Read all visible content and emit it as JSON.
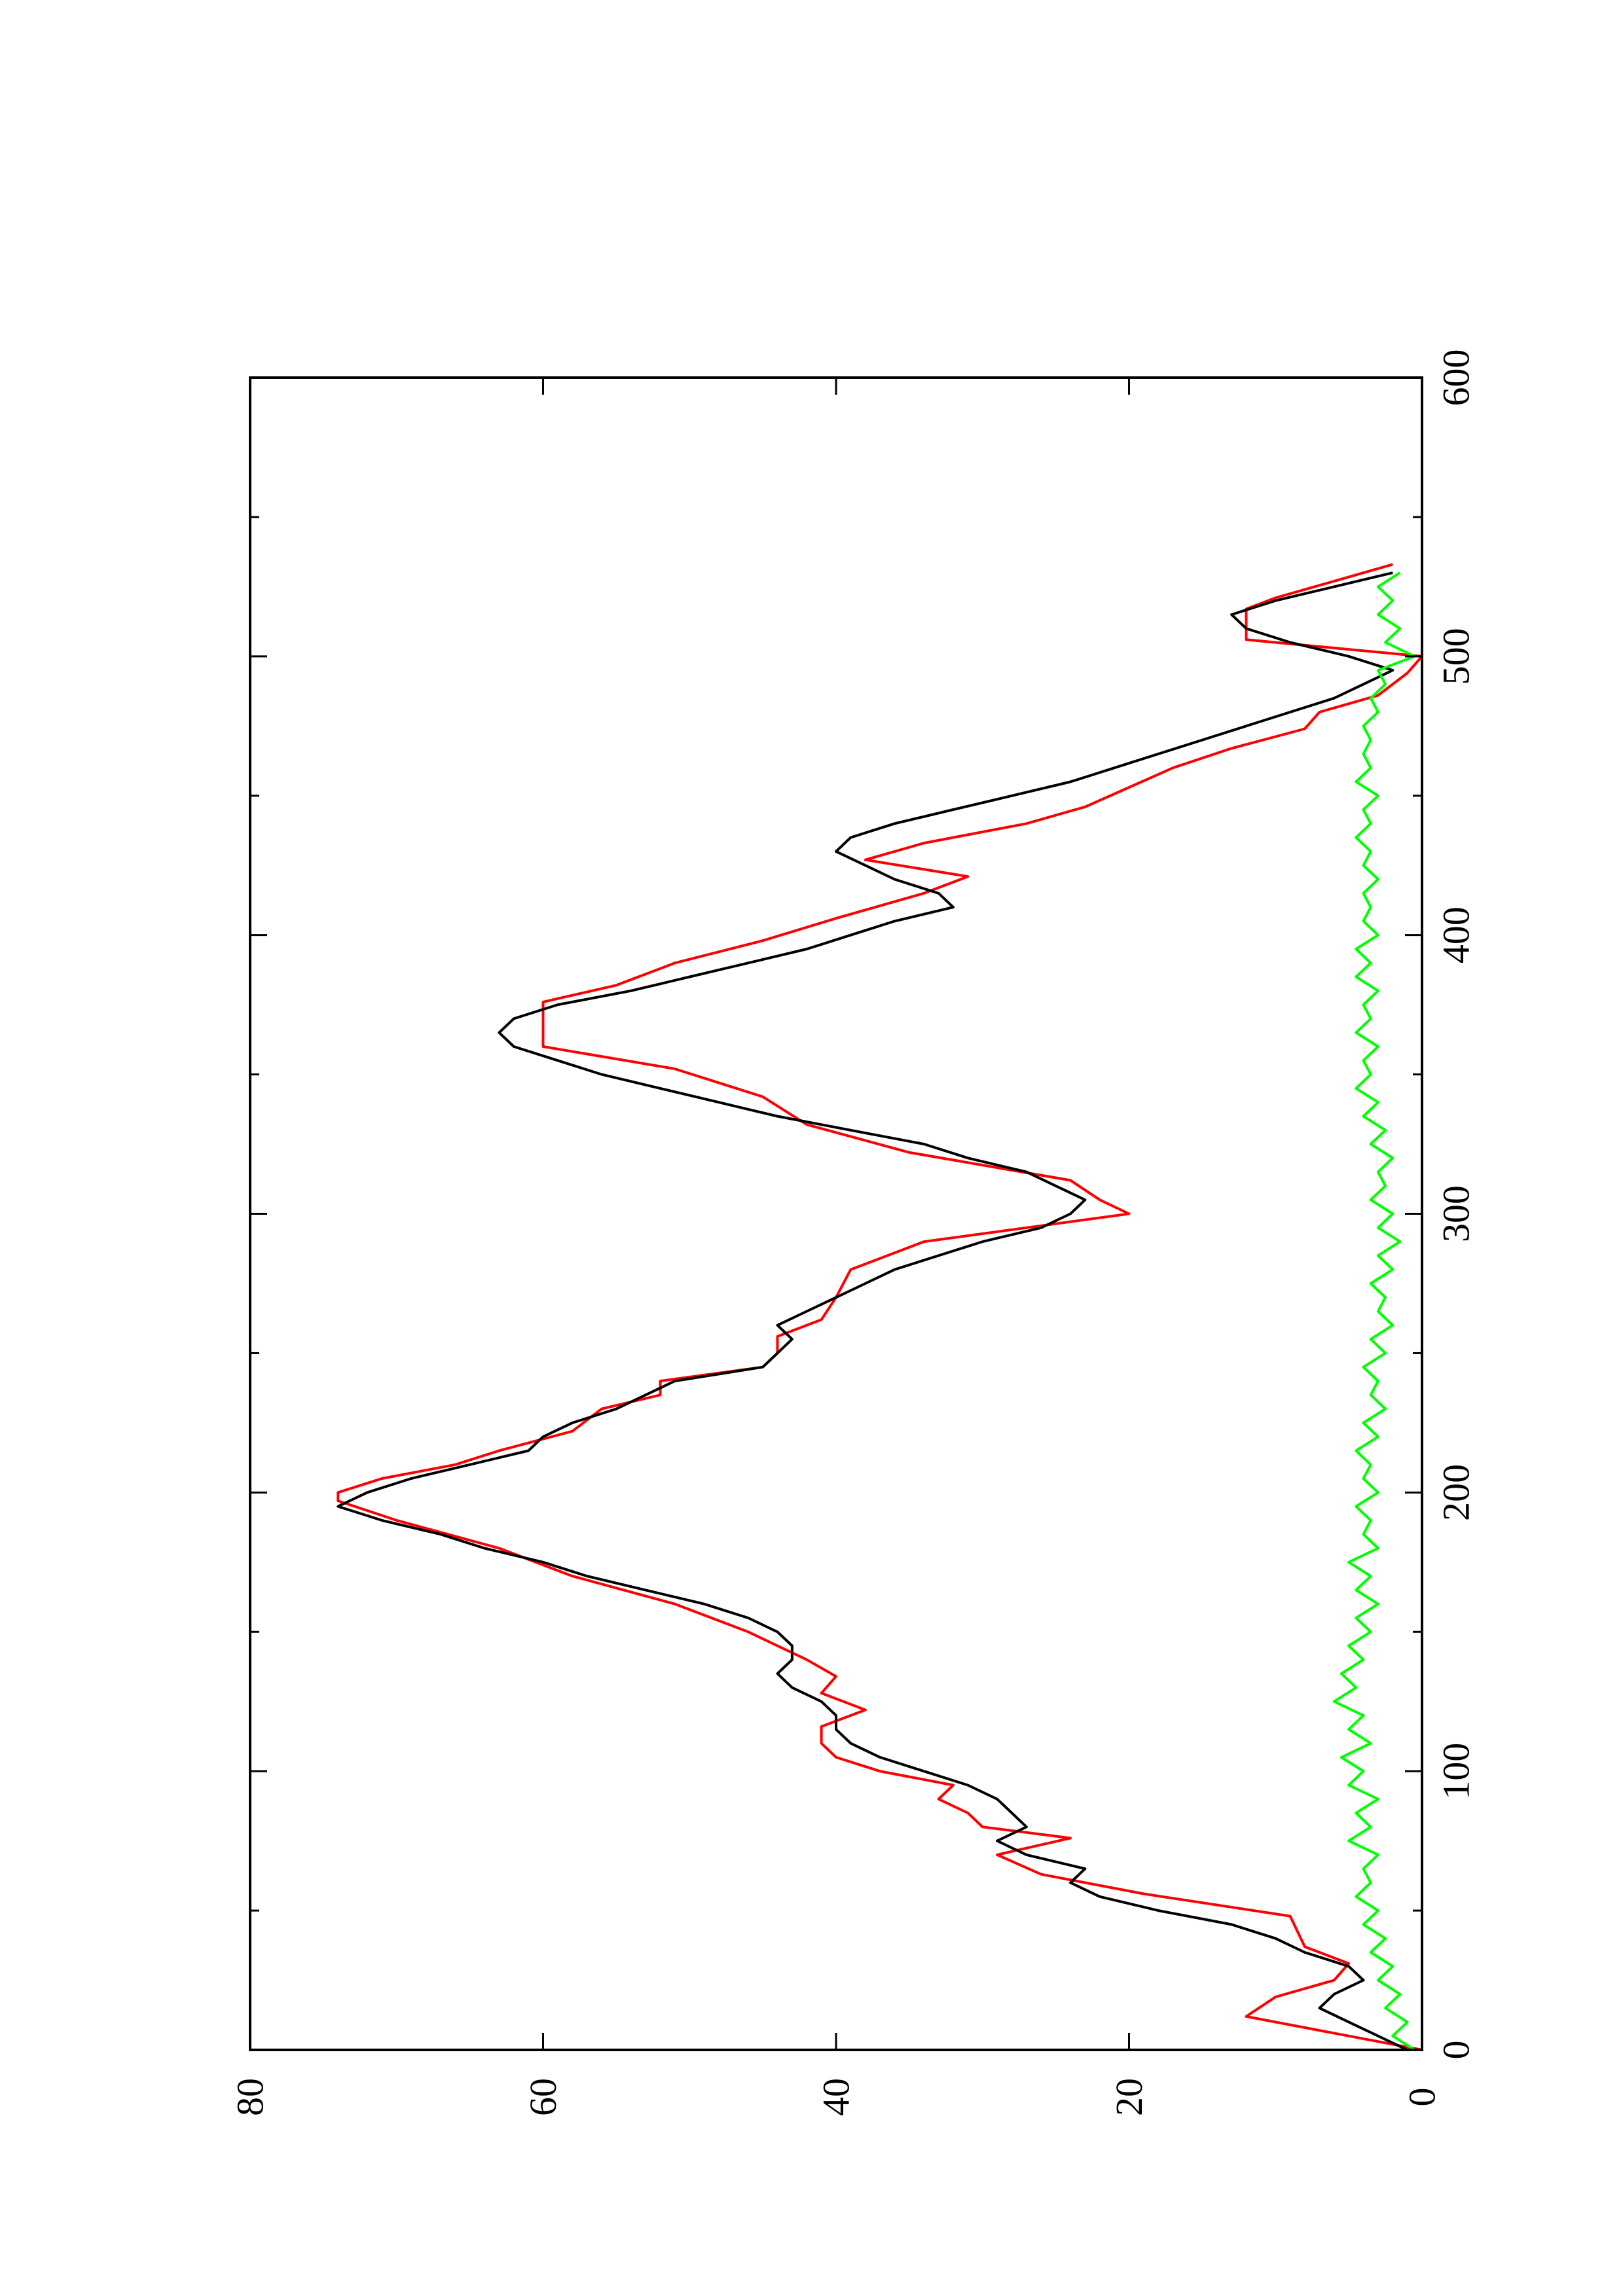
{
  "chart_data": {
    "type": "line",
    "orientation": "rotated-90-ccw",
    "title": "",
    "xlabel": "",
    "ylabel": "",
    "xlim": [
      0,
      600
    ],
    "ylim": [
      0,
      80
    ],
    "x_major_ticks": [
      0,
      100,
      200,
      300,
      400,
      500,
      600
    ],
    "x_minor_ticks": [
      50,
      150,
      250,
      350,
      450,
      550
    ],
    "y_major_ticks": [
      0,
      20,
      40,
      60,
      80
    ],
    "x_tick_labels": [
      "0",
      "100",
      "200",
      "300",
      "400",
      "500",
      "600"
    ],
    "y_tick_labels": [
      "0",
      "20",
      "40",
      "60",
      "80"
    ],
    "grid": false,
    "legend": "none",
    "series": [
      {
        "color": "#ff0000",
        "x": [
          0,
          5,
          12,
          19,
          25,
          31,
          37,
          48,
          56,
          63,
          70,
          76,
          80,
          85,
          90,
          95,
          100,
          105,
          110,
          116,
          122,
          128,
          134,
          140,
          150,
          160,
          170,
          180,
          190,
          197,
          200,
          205,
          210,
          215,
          222,
          230,
          235,
          240,
          245,
          250,
          256,
          262,
          270,
          280,
          290,
          300,
          305,
          312,
          322,
          332,
          342,
          352,
          360,
          364,
          370,
          376,
          382,
          390,
          398,
          406,
          415,
          421,
          427,
          433,
          440,
          446,
          453,
          460,
          467,
          474,
          480,
          486,
          494,
          500,
          506,
          512,
          517,
          521,
          527,
          533
        ],
        "y": [
          0,
          5,
          12,
          10,
          6,
          5,
          8,
          9,
          19,
          26,
          29,
          24,
          30,
          31,
          33,
          32,
          37,
          40,
          41,
          41,
          38,
          41,
          40,
          42,
          46,
          51,
          58,
          63,
          70,
          74,
          74,
          71,
          66,
          63,
          58,
          56,
          52,
          52,
          45,
          44,
          44,
          41,
          40,
          39,
          34,
          20,
          22,
          24,
          35,
          42,
          45,
          51,
          60,
          60,
          60,
          60,
          55,
          51,
          45,
          40,
          34,
          31,
          38,
          34,
          27,
          23,
          20,
          17,
          13,
          8,
          7,
          3,
          1,
          0,
          12,
          12,
          12,
          10,
          6,
          2
        ]
      },
      {
        "color": "#000000",
        "x": [
          0,
          5,
          10,
          15,
          20,
          25,
          30,
          35,
          40,
          45,
          50,
          55,
          60,
          65,
          70,
          75,
          80,
          85,
          90,
          95,
          100,
          105,
          110,
          115,
          120,
          125,
          130,
          135,
          140,
          145,
          150,
          155,
          160,
          165,
          170,
          175,
          180,
          185,
          190,
          195,
          200,
          205,
          210,
          215,
          220,
          225,
          230,
          235,
          240,
          245,
          250,
          255,
          260,
          265,
          270,
          275,
          280,
          285,
          290,
          295,
          300,
          305,
          310,
          315,
          320,
          325,
          330,
          335,
          340,
          345,
          350,
          355,
          360,
          365,
          370,
          375,
          380,
          385,
          390,
          395,
          400,
          405,
          410,
          415,
          420,
          425,
          430,
          435,
          440,
          445,
          450,
          455,
          460,
          465,
          470,
          475,
          480,
          485,
          490,
          495,
          500,
          505,
          510,
          515,
          520,
          525,
          530
        ],
        "y": [
          1,
          3,
          5,
          7,
          6,
          4,
          5,
          8,
          10,
          13,
          18,
          22,
          24,
          23,
          27,
          29,
          27,
          28,
          29,
          31,
          34,
          37,
          39,
          40,
          40,
          41,
          43,
          44,
          43,
          43,
          44,
          46,
          49,
          53,
          57,
          60,
          64,
          67,
          71,
          74,
          72,
          69,
          65,
          61,
          60,
          58,
          55,
          53,
          51,
          45,
          44,
          43,
          44,
          42,
          40,
          38,
          36,
          33,
          30,
          26,
          24,
          23,
          25,
          27,
          31,
          34,
          39,
          44,
          48,
          52,
          56,
          59,
          62,
          63,
          62,
          59,
          54,
          50,
          46,
          42,
          39,
          36,
          32,
          33,
          36,
          38,
          40,
          39,
          36,
          32,
          28,
          24,
          21,
          18,
          15,
          12,
          9,
          6,
          4,
          2,
          5,
          9,
          12,
          13,
          10,
          6,
          2
        ]
      },
      {
        "color": "#00ff00",
        "x": [
          0,
          5,
          10,
          15,
          20,
          25,
          30,
          35,
          40,
          45,
          50,
          55,
          60,
          65,
          70,
          75,
          80,
          85,
          90,
          95,
          100,
          105,
          110,
          115,
          120,
          125,
          130,
          135,
          140,
          145,
          150,
          155,
          160,
          165,
          170,
          175,
          180,
          185,
          190,
          195,
          200,
          205,
          210,
          215,
          220,
          225,
          230,
          235,
          240,
          245,
          250,
          255,
          260,
          265,
          270,
          275,
          280,
          285,
          290,
          295,
          300,
          305,
          310,
          315,
          320,
          325,
          330,
          335,
          340,
          345,
          350,
          355,
          360,
          365,
          370,
          375,
          380,
          385,
          390,
          395,
          400,
          405,
          410,
          415,
          420,
          425,
          430,
          435,
          440,
          445,
          450,
          455,
          460,
          465,
          470,
          475,
          480,
          485,
          490,
          495,
          500,
          505,
          510,
          515,
          520,
          525,
          530
        ],
        "y": [
          0.5,
          2.0,
          1.0,
          2.5,
          1.5,
          3.0,
          2.0,
          3.5,
          2.5,
          4.0,
          3.0,
          4.5,
          3.5,
          4.0,
          3.0,
          5.0,
          3.5,
          4.5,
          3.0,
          5.0,
          4.0,
          5.5,
          3.5,
          5.0,
          4.0,
          6.0,
          4.5,
          5.5,
          4.0,
          5.0,
          3.5,
          4.5,
          3.0,
          4.5,
          3.5,
          5.0,
          3.0,
          4.0,
          3.5,
          4.5,
          3.0,
          4.0,
          3.5,
          4.5,
          3.0,
          4.0,
          2.5,
          3.5,
          3.0,
          4.0,
          2.5,
          3.5,
          2.0,
          3.0,
          2.5,
          3.5,
          2.0,
          3.0,
          1.5,
          3.0,
          2.0,
          3.5,
          2.5,
          3.0,
          2.0,
          3.5,
          2.5,
          4.0,
          3.0,
          4.5,
          3.5,
          4.0,
          3.0,
          4.5,
          3.5,
          4.0,
          3.0,
          4.5,
          3.5,
          4.5,
          3.0,
          4.0,
          3.5,
          4.0,
          3.0,
          4.0,
          3.5,
          4.5,
          3.5,
          4.0,
          3.0,
          4.5,
          3.5,
          4.0,
          3.5,
          4.0,
          3.0,
          3.5,
          2.5,
          3.0,
          0.5,
          2.5,
          1.5,
          3.0,
          2.0,
          3.0,
          1.5
        ]
      }
    ]
  }
}
